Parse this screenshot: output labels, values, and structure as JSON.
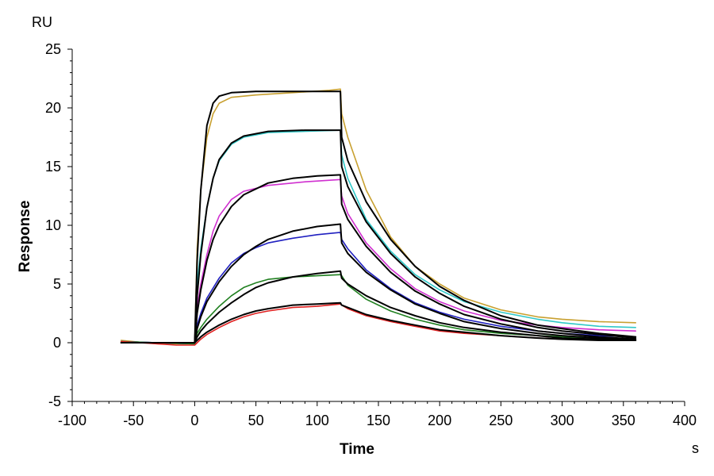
{
  "chart_data": {
    "type": "line",
    "title": "",
    "xlabel": "Time",
    "ylabel": "Response",
    "x_unit": "s",
    "y_unit": "RU",
    "xlim": [
      -100,
      400
    ],
    "ylim": [
      -5,
      25
    ],
    "x_ticks": [
      -100,
      -50,
      0,
      50,
      100,
      150,
      200,
      250,
      300,
      350,
      400
    ],
    "y_ticks": [
      -5,
      0,
      5,
      10,
      15,
      20,
      25
    ],
    "grid": false,
    "legend": "none",
    "association_end": 120,
    "series": [
      {
        "color": "#c8a030",
        "points": [
          [
            -60,
            0.2
          ],
          [
            -30,
            -0.1
          ],
          [
            0,
            -0.1
          ],
          [
            2,
            8
          ],
          [
            5,
            13
          ],
          [
            10,
            17.5
          ],
          [
            15,
            19.5
          ],
          [
            20,
            20.4
          ],
          [
            30,
            20.9
          ],
          [
            50,
            21.1
          ],
          [
            80,
            21.3
          ],
          [
            110,
            21.5
          ],
          [
            119,
            21.6
          ],
          [
            120,
            19.5
          ],
          [
            125,
            17.5
          ],
          [
            140,
            13
          ],
          [
            160,
            9
          ],
          [
            180,
            6.5
          ],
          [
            200,
            5
          ],
          [
            220,
            3.8
          ],
          [
            250,
            2.8
          ],
          [
            280,
            2.2
          ],
          [
            300,
            2
          ],
          [
            330,
            1.8
          ],
          [
            360,
            1.7
          ]
        ]
      },
      {
        "color": "#30c8c8",
        "points": [
          [
            -60,
            0.1
          ],
          [
            -30,
            0
          ],
          [
            0,
            -0.1
          ],
          [
            2,
            5
          ],
          [
            5,
            8
          ],
          [
            10,
            11.5
          ],
          [
            15,
            14
          ],
          [
            20,
            15.5
          ],
          [
            30,
            16.9
          ],
          [
            40,
            17.5
          ],
          [
            60,
            17.9
          ],
          [
            90,
            18
          ],
          [
            119,
            18.1
          ],
          [
            120,
            16
          ],
          [
            125,
            14
          ],
          [
            140,
            10.5
          ],
          [
            160,
            7.8
          ],
          [
            180,
            5.8
          ],
          [
            200,
            4.5
          ],
          [
            220,
            3.5
          ],
          [
            250,
            2.6
          ],
          [
            280,
            2
          ],
          [
            300,
            1.7
          ],
          [
            330,
            1.4
          ],
          [
            360,
            1.3
          ]
        ]
      },
      {
        "color": "#d030d0",
        "points": [
          [
            -60,
            0.1
          ],
          [
            -30,
            0
          ],
          [
            0,
            -0.1
          ],
          [
            2,
            3
          ],
          [
            5,
            5
          ],
          [
            10,
            7.5
          ],
          [
            15,
            9.5
          ],
          [
            20,
            10.8
          ],
          [
            30,
            12.2
          ],
          [
            40,
            12.9
          ],
          [
            60,
            13.4
          ],
          [
            90,
            13.7
          ],
          [
            119,
            13.9
          ],
          [
            120,
            12.5
          ],
          [
            125,
            11
          ],
          [
            140,
            8.5
          ],
          [
            160,
            6.3
          ],
          [
            180,
            4.6
          ],
          [
            200,
            3.5
          ],
          [
            220,
            2.7
          ],
          [
            250,
            1.9
          ],
          [
            280,
            1.5
          ],
          [
            300,
            1.3
          ],
          [
            330,
            1.1
          ],
          [
            360,
            1
          ]
        ]
      },
      {
        "color": "#2020c0",
        "points": [
          [
            -60,
            0.1
          ],
          [
            -30,
            0
          ],
          [
            0,
            -0.1
          ],
          [
            2,
            1.5
          ],
          [
            5,
            2.5
          ],
          [
            10,
            3.8
          ],
          [
            20,
            5.5
          ],
          [
            30,
            6.8
          ],
          [
            40,
            7.6
          ],
          [
            50,
            8.1
          ],
          [
            60,
            8.5
          ],
          [
            80,
            8.9
          ],
          [
            100,
            9.2
          ],
          [
            119,
            9.4
          ],
          [
            120,
            8.8
          ],
          [
            125,
            8
          ],
          [
            140,
            6.2
          ],
          [
            160,
            4.6
          ],
          [
            180,
            3.4
          ],
          [
            200,
            2.6
          ],
          [
            220,
            2
          ],
          [
            250,
            1.4
          ],
          [
            280,
            1
          ],
          [
            300,
            0.8
          ],
          [
            330,
            0.6
          ],
          [
            360,
            0.5
          ]
        ]
      },
      {
        "color": "#208020",
        "points": [
          [
            -60,
            0.1
          ],
          [
            -30,
            0
          ],
          [
            0,
            -0.1
          ],
          [
            2,
            0.8
          ],
          [
            5,
            1.3
          ],
          [
            10,
            2
          ],
          [
            20,
            3.1
          ],
          [
            30,
            4
          ],
          [
            40,
            4.7
          ],
          [
            50,
            5.1
          ],
          [
            60,
            5.4
          ],
          [
            80,
            5.6
          ],
          [
            100,
            5.7
          ],
          [
            119,
            5.8
          ],
          [
            120,
            5.7
          ],
          [
            125,
            4.9
          ],
          [
            140,
            3.7
          ],
          [
            160,
            2.7
          ],
          [
            180,
            2
          ],
          [
            200,
            1.5
          ],
          [
            220,
            1.1
          ],
          [
            250,
            0.8
          ],
          [
            280,
            0.6
          ],
          [
            300,
            0.5
          ],
          [
            330,
            0.4
          ],
          [
            360,
            0.3
          ]
        ]
      },
      {
        "color": "#e02020",
        "points": [
          [
            -60,
            0.1
          ],
          [
            -30,
            -0.1
          ],
          [
            -15,
            -0.2
          ],
          [
            0,
            -0.2
          ],
          [
            2,
            0
          ],
          [
            5,
            0.3
          ],
          [
            10,
            0.7
          ],
          [
            20,
            1.3
          ],
          [
            30,
            1.8
          ],
          [
            40,
            2.2
          ],
          [
            50,
            2.5
          ],
          [
            60,
            2.7
          ],
          [
            80,
            3
          ],
          [
            100,
            3.1
          ],
          [
            119,
            3.3
          ],
          [
            120,
            3.2
          ],
          [
            125,
            2.9
          ],
          [
            140,
            2.3
          ],
          [
            160,
            1.8
          ],
          [
            180,
            1.4
          ],
          [
            200,
            1
          ],
          [
            220,
            0.8
          ],
          [
            250,
            0.6
          ],
          [
            280,
            0.4
          ],
          [
            300,
            0.3
          ],
          [
            330,
            0.3
          ],
          [
            360,
            0.2
          ]
        ]
      },
      {
        "color": "#000000",
        "points": [
          [
            -60,
            0
          ],
          [
            0,
            0
          ],
          [
            2,
            7
          ],
          [
            5,
            13
          ],
          [
            10,
            18.5
          ],
          [
            15,
            20.4
          ],
          [
            20,
            21
          ],
          [
            30,
            21.3
          ],
          [
            50,
            21.4
          ],
          [
            80,
            21.4
          ],
          [
            119,
            21.4
          ],
          [
            120,
            17.5
          ],
          [
            125,
            15.5
          ],
          [
            140,
            12
          ],
          [
            160,
            8.8
          ],
          [
            180,
            6.5
          ],
          [
            200,
            4.8
          ],
          [
            220,
            3.6
          ],
          [
            250,
            2.3
          ],
          [
            280,
            1.5
          ],
          [
            300,
            1.2
          ],
          [
            330,
            0.8
          ],
          [
            360,
            0.5
          ]
        ]
      },
      {
        "color": "#000000",
        "points": [
          [
            -60,
            0
          ],
          [
            0,
            0
          ],
          [
            2,
            4
          ],
          [
            5,
            7.5
          ],
          [
            10,
            11.5
          ],
          [
            15,
            14
          ],
          [
            20,
            15.6
          ],
          [
            30,
            17
          ],
          [
            40,
            17.6
          ],
          [
            60,
            18
          ],
          [
            90,
            18.1
          ],
          [
            119,
            18.1
          ],
          [
            120,
            15
          ],
          [
            125,
            13.3
          ],
          [
            140,
            10.3
          ],
          [
            160,
            7.6
          ],
          [
            180,
            5.6
          ],
          [
            200,
            4.2
          ],
          [
            220,
            3.1
          ],
          [
            250,
            2
          ],
          [
            280,
            1.3
          ],
          [
            300,
            1
          ],
          [
            330,
            0.7
          ],
          [
            360,
            0.4
          ]
        ]
      },
      {
        "color": "#000000",
        "points": [
          [
            -60,
            0
          ],
          [
            0,
            0
          ],
          [
            2,
            2.5
          ],
          [
            5,
            4.5
          ],
          [
            10,
            7
          ],
          [
            15,
            8.8
          ],
          [
            20,
            10
          ],
          [
            30,
            11.6
          ],
          [
            40,
            12.6
          ],
          [
            60,
            13.6
          ],
          [
            80,
            14
          ],
          [
            100,
            14.2
          ],
          [
            119,
            14.3
          ],
          [
            120,
            11.8
          ],
          [
            125,
            10.5
          ],
          [
            140,
            8.2
          ],
          [
            160,
            6
          ],
          [
            180,
            4.4
          ],
          [
            200,
            3.3
          ],
          [
            220,
            2.4
          ],
          [
            250,
            1.6
          ],
          [
            280,
            1
          ],
          [
            300,
            0.8
          ],
          [
            330,
            0.5
          ],
          [
            360,
            0.3
          ]
        ]
      },
      {
        "color": "#000000",
        "points": [
          [
            -60,
            0
          ],
          [
            0,
            0
          ],
          [
            2,
            1.2
          ],
          [
            5,
            2.2
          ],
          [
            10,
            3.5
          ],
          [
            20,
            5.2
          ],
          [
            30,
            6.5
          ],
          [
            40,
            7.5
          ],
          [
            50,
            8.2
          ],
          [
            60,
            8.8
          ],
          [
            80,
            9.5
          ],
          [
            100,
            9.9
          ],
          [
            119,
            10.1
          ],
          [
            120,
            8.5
          ],
          [
            125,
            7.6
          ],
          [
            140,
            6
          ],
          [
            160,
            4.5
          ],
          [
            180,
            3.3
          ],
          [
            200,
            2.5
          ],
          [
            220,
            1.8
          ],
          [
            250,
            1.2
          ],
          [
            280,
            0.8
          ],
          [
            300,
            0.6
          ],
          [
            330,
            0.4
          ],
          [
            360,
            0.2
          ]
        ]
      },
      {
        "color": "#000000",
        "points": [
          [
            -60,
            0
          ],
          [
            0,
            0
          ],
          [
            2,
            0.5
          ],
          [
            5,
            1
          ],
          [
            10,
            1.6
          ],
          [
            20,
            2.6
          ],
          [
            30,
            3.4
          ],
          [
            40,
            4.1
          ],
          [
            50,
            4.7
          ],
          [
            60,
            5.1
          ],
          [
            80,
            5.6
          ],
          [
            100,
            5.9
          ],
          [
            119,
            6.1
          ],
          [
            120,
            5.5
          ],
          [
            125,
            5
          ],
          [
            140,
            4
          ],
          [
            160,
            3
          ],
          [
            180,
            2.3
          ],
          [
            200,
            1.7
          ],
          [
            220,
            1.3
          ],
          [
            250,
            0.9
          ],
          [
            280,
            0.6
          ],
          [
            300,
            0.4
          ],
          [
            330,
            0.3
          ],
          [
            360,
            0.2
          ]
        ]
      },
      {
        "color": "#000000",
        "points": [
          [
            -60,
            0
          ],
          [
            0,
            0
          ],
          [
            2,
            0.2
          ],
          [
            5,
            0.5
          ],
          [
            10,
            0.9
          ],
          [
            20,
            1.5
          ],
          [
            30,
            2
          ],
          [
            40,
            2.4
          ],
          [
            50,
            2.7
          ],
          [
            60,
            2.9
          ],
          [
            80,
            3.2
          ],
          [
            100,
            3.3
          ],
          [
            119,
            3.4
          ],
          [
            120,
            3.2
          ],
          [
            125,
            3
          ],
          [
            140,
            2.4
          ],
          [
            160,
            1.9
          ],
          [
            180,
            1.5
          ],
          [
            200,
            1.1
          ],
          [
            220,
            0.9
          ],
          [
            250,
            0.6
          ],
          [
            280,
            0.4
          ],
          [
            300,
            0.3
          ],
          [
            330,
            0.2
          ],
          [
            360,
            0.2
          ]
        ]
      }
    ]
  }
}
